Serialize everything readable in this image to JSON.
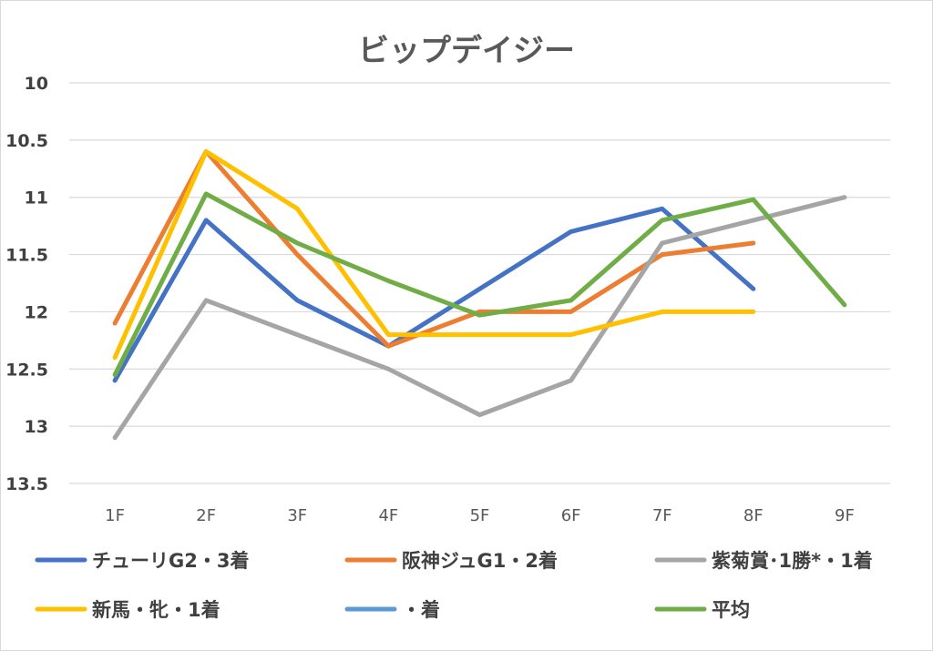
{
  "chart_data": {
    "type": "line",
    "title": "ビップデイジー",
    "categories": [
      "1F",
      "2F",
      "3F",
      "4F",
      "5F",
      "6F",
      "7F",
      "8F",
      "9F"
    ],
    "ylim": [
      13.5,
      10
    ],
    "y_inverted": true,
    "y_ticks": [
      "10",
      "10.5",
      "11",
      "11.5",
      "12",
      "12.5",
      "13",
      "13.5"
    ],
    "grid": true,
    "legend_position": "bottom",
    "series": [
      {
        "name": "チューリG2・3着",
        "color": "#4472c4",
        "values": [
          12.6,
          11.2,
          11.9,
          12.3,
          11.8,
          11.3,
          11.1,
          11.8,
          null
        ]
      },
      {
        "name": "阪神ジュG1・2着",
        "color": "#ed7d31",
        "values": [
          12.1,
          10.6,
          11.5,
          12.3,
          12.0,
          12.0,
          11.5,
          11.4,
          null
        ]
      },
      {
        "name": "紫菊賞･1勝*・1着",
        "color": "#a5a5a5",
        "values": [
          13.1,
          11.9,
          12.2,
          12.5,
          12.9,
          12.6,
          11.4,
          11.2,
          11.0
        ]
      },
      {
        "name": "新馬・牝・1着",
        "color": "#ffc000",
        "values": [
          12.4,
          10.6,
          11.1,
          12.2,
          12.2,
          12.2,
          12.0,
          12.0,
          null
        ]
      },
      {
        "name": "・着",
        "color": "#5b9bd5",
        "values": [
          null,
          null,
          null,
          null,
          null,
          null,
          null,
          null,
          null
        ]
      },
      {
        "name": "平均",
        "color": "#70ad47",
        "values": [
          12.55,
          10.97,
          11.4,
          11.73,
          12.03,
          11.9,
          11.2,
          11.02,
          11.94
        ]
      }
    ]
  }
}
